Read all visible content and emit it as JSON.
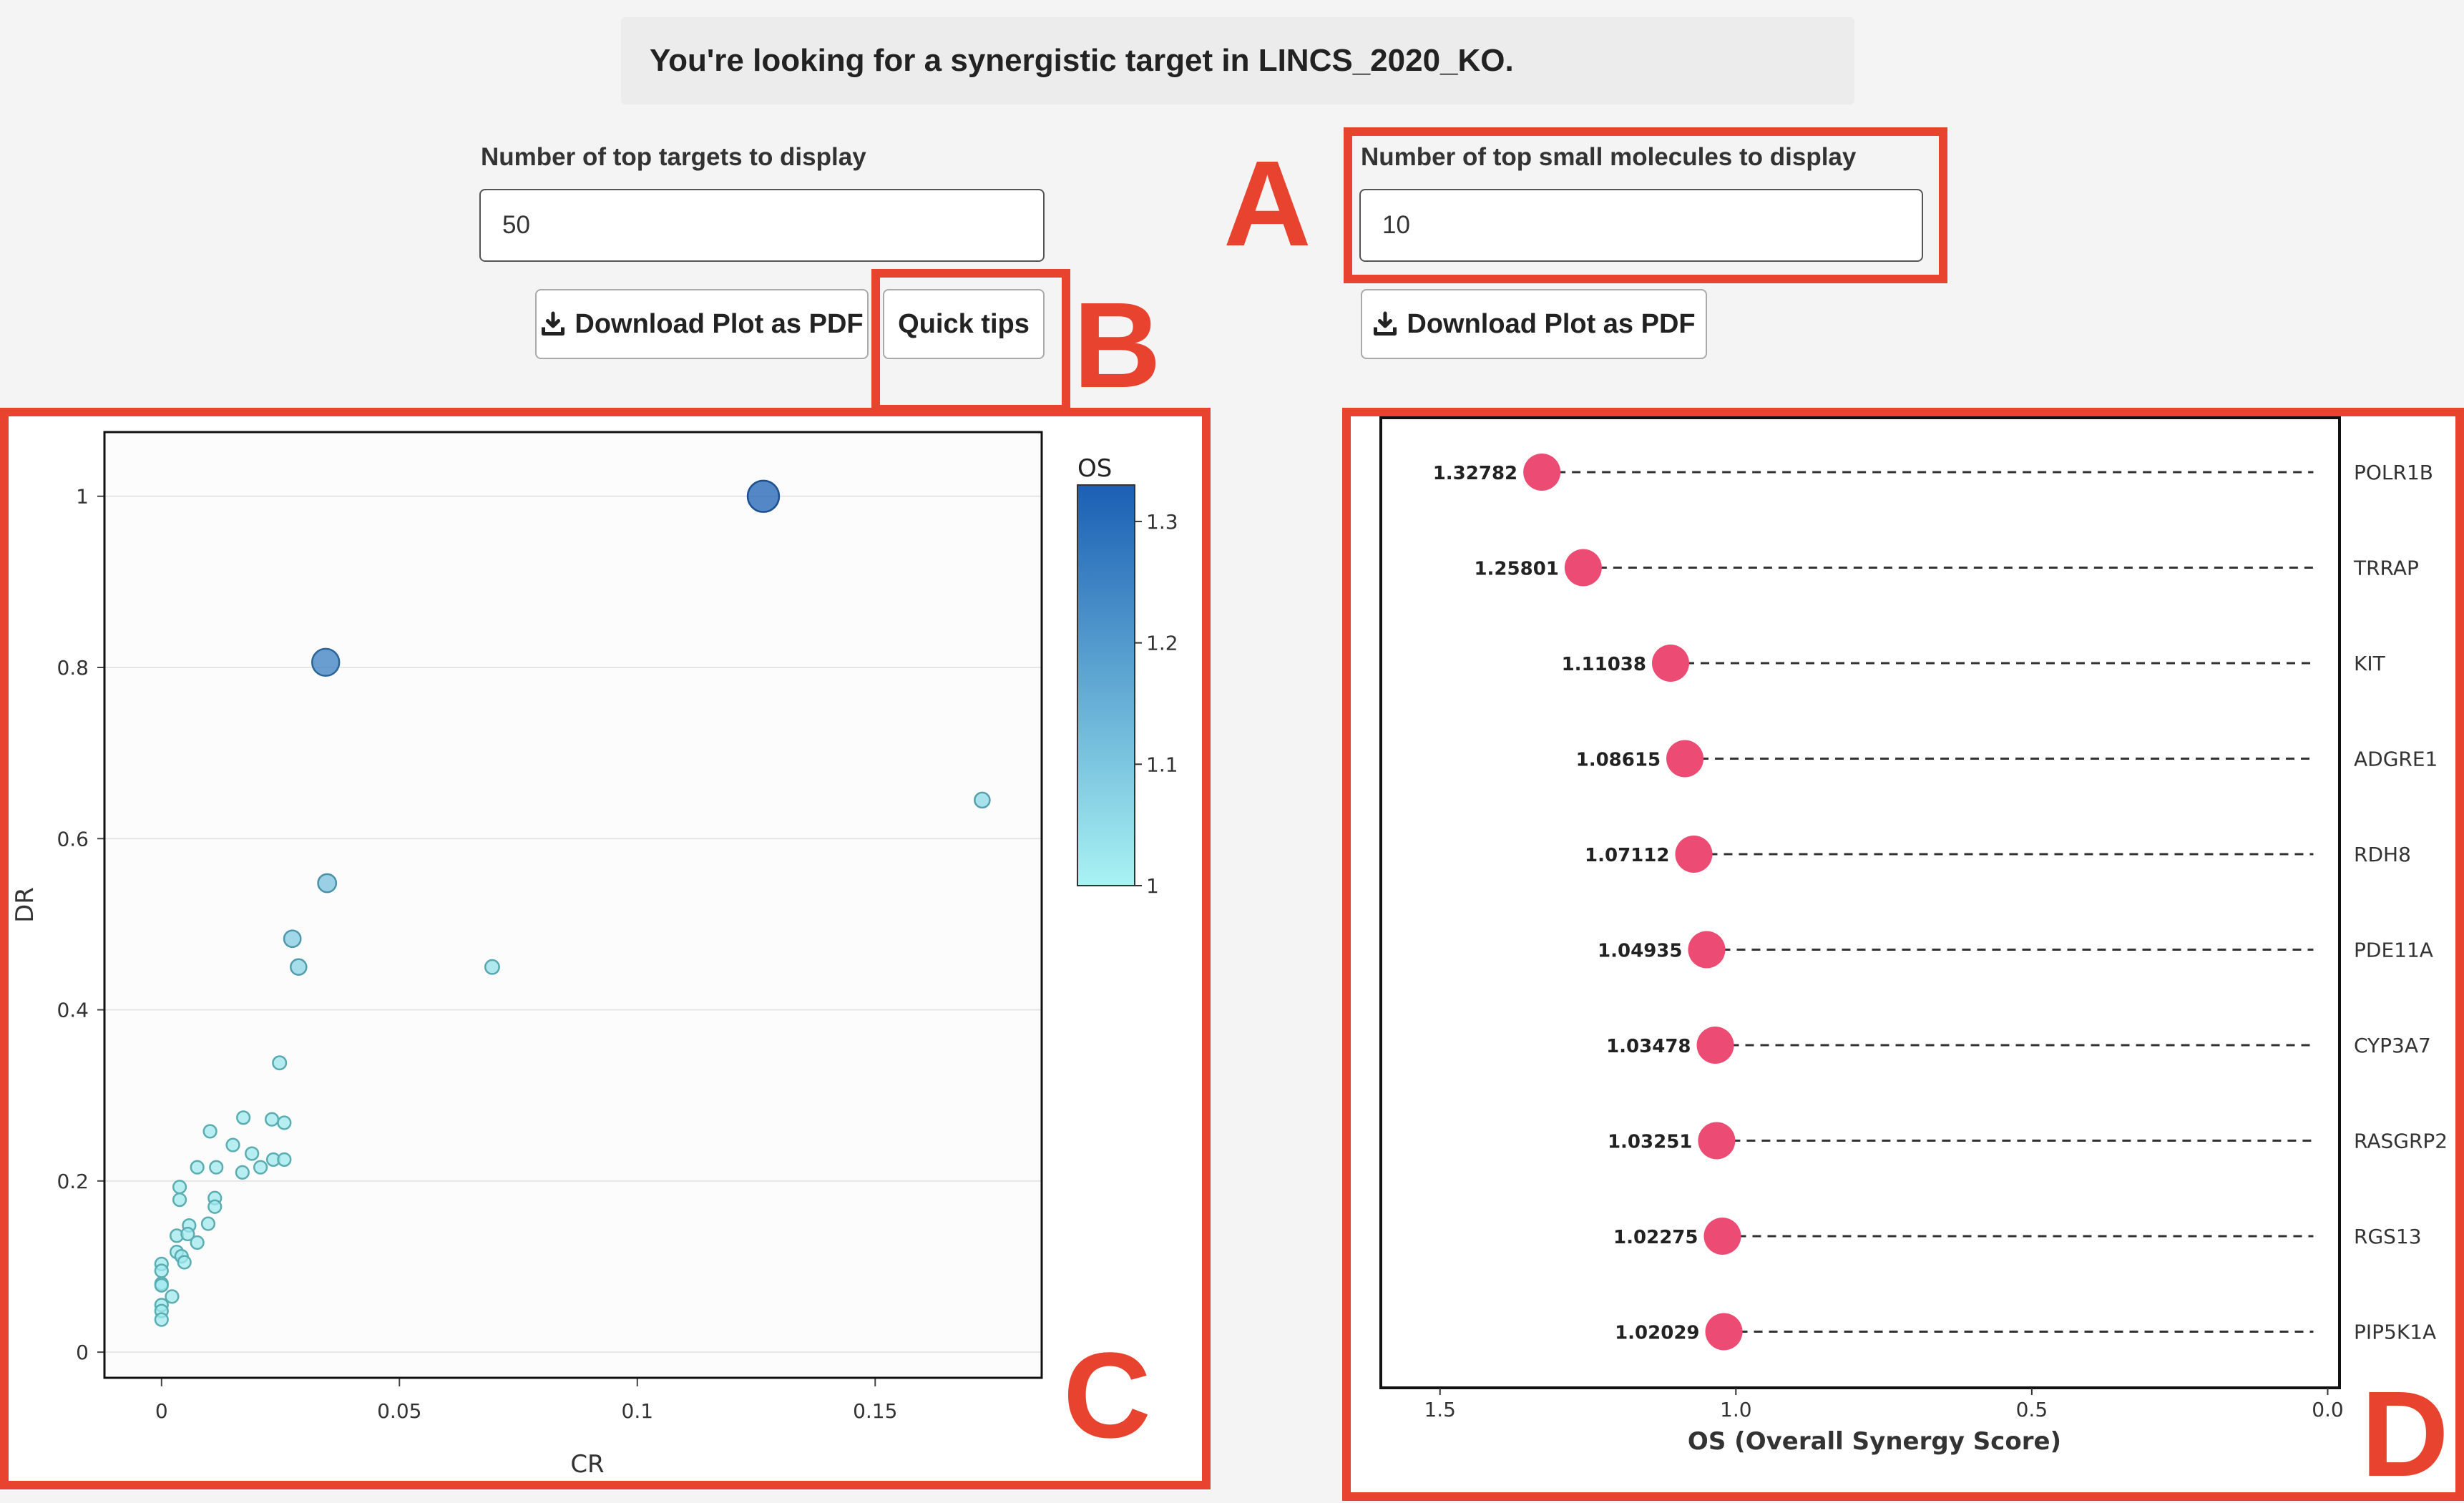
{
  "header": {
    "message": "You're looking for a synergistic target in LINCS_2020_KO."
  },
  "left_controls": {
    "targets_label": "Number of top targets to display",
    "targets_value": "50",
    "download_label": "Download Plot as PDF",
    "quick_tips_label": "Quick tips"
  },
  "right_controls": {
    "molecules_label": "Number of top small molecules to display",
    "molecules_value": "10",
    "download_label": "Download Plot as PDF"
  },
  "annotations": {
    "A": "A",
    "B": "B",
    "C": "C",
    "D": "D",
    "color": "#e8432f"
  },
  "chart_data": [
    {
      "type": "scatter",
      "xlabel": "CR",
      "ylabel": "DR",
      "xlim": [
        -0.012,
        0.185
      ],
      "ylim": [
        -0.03,
        1.075
      ],
      "xticks": [
        "0",
        "0.05",
        "0.1",
        "0.15"
      ],
      "xtick_values": [
        0,
        0.05,
        0.1,
        0.15
      ],
      "yticks": [
        "0",
        "0.2",
        "0.4",
        "0.6",
        "0.8",
        "1"
      ],
      "ytick_values": [
        0,
        0.2,
        0.4,
        0.6,
        0.8,
        1
      ],
      "colorbar": {
        "title": "OS",
        "min": 1,
        "max": 1.33,
        "ticks": [
          "1",
          "1.1",
          "1.2",
          "1.3"
        ],
        "tick_values": [
          1,
          1.1,
          1.2,
          1.3
        ],
        "color_low": "#a8f3f3",
        "color_high": "#1a5fb4"
      },
      "grid": true,
      "points": [
        {
          "x": 0.1265,
          "y": 1.0,
          "os": 1.328
        },
        {
          "x": 0.0345,
          "y": 0.806,
          "os": 1.258
        },
        {
          "x": 0.1725,
          "y": 0.645,
          "os": 1.06
        },
        {
          "x": 0.0348,
          "y": 0.548,
          "os": 1.11
        },
        {
          "x": 0.0275,
          "y": 0.483,
          "os": 1.086
        },
        {
          "x": 0.0288,
          "y": 0.45,
          "os": 1.071
        },
        {
          "x": 0.0695,
          "y": 0.45,
          "os": 1.04
        },
        {
          "x": 0.0248,
          "y": 0.338,
          "os": 1.03
        },
        {
          "x": 0.0172,
          "y": 0.274,
          "os": 1.02
        },
        {
          "x": 0.0232,
          "y": 0.272,
          "os": 1.02
        },
        {
          "x": 0.0258,
          "y": 0.268,
          "os": 1.02
        },
        {
          "x": 0.0102,
          "y": 0.258,
          "os": 1.02
        },
        {
          "x": 0.015,
          "y": 0.242,
          "os": 1.02
        },
        {
          "x": 0.019,
          "y": 0.232,
          "os": 1.02
        },
        {
          "x": 0.0235,
          "y": 0.225,
          "os": 1.02
        },
        {
          "x": 0.0258,
          "y": 0.225,
          "os": 1.02
        },
        {
          "x": 0.0075,
          "y": 0.216,
          "os": 1.02
        },
        {
          "x": 0.0115,
          "y": 0.216,
          "os": 1.02
        },
        {
          "x": 0.0208,
          "y": 0.216,
          "os": 1.02
        },
        {
          "x": 0.017,
          "y": 0.21,
          "os": 1.02
        },
        {
          "x": 0.0038,
          "y": 0.193,
          "os": 1.02
        },
        {
          "x": 0.0112,
          "y": 0.18,
          "os": 1.02
        },
        {
          "x": 0.0038,
          "y": 0.178,
          "os": 1.02
        },
        {
          "x": 0.0112,
          "y": 0.17,
          "os": 1.02
        },
        {
          "x": 0.0058,
          "y": 0.148,
          "os": 1.02
        },
        {
          "x": 0.0098,
          "y": 0.15,
          "os": 1.02
        },
        {
          "x": 0.0032,
          "y": 0.136,
          "os": 1.02
        },
        {
          "x": 0.0055,
          "y": 0.138,
          "os": 1.02
        },
        {
          "x": 0.0075,
          "y": 0.128,
          "os": 1.02
        },
        {
          "x": 0.0032,
          "y": 0.117,
          "os": 1.02
        },
        {
          "x": 0.0042,
          "y": 0.112,
          "os": 1.02
        },
        {
          "x": 0.0048,
          "y": 0.105,
          "os": 1.02
        },
        {
          "x": 0.0,
          "y": 0.103,
          "os": 1.02
        },
        {
          "x": 0.0,
          "y": 0.095,
          "os": 1.02
        },
        {
          "x": 0.0,
          "y": 0.08,
          "os": 1.02
        },
        {
          "x": 0.0,
          "y": 0.078,
          "os": 1.02
        },
        {
          "x": 0.0022,
          "y": 0.065,
          "os": 1.02
        },
        {
          "x": 0.0,
          "y": 0.055,
          "os": 1.02
        },
        {
          "x": 0.0,
          "y": 0.048,
          "os": 1.02
        },
        {
          "x": 0.0,
          "y": 0.038,
          "os": 1.02
        }
      ]
    },
    {
      "type": "lollipop",
      "xlabel": "OS (Overall Synergy Score)",
      "xlim": [
        1.6,
        -0.02
      ],
      "xticks": [
        "1.5",
        "1.0",
        "0.5",
        "0.0"
      ],
      "xtick_values": [
        1.5,
        1.0,
        0.5,
        0.0
      ],
      "color": "#ec4c74",
      "categories": [
        "POLR1B",
        "TRRAP",
        "KIT",
        "ADGRE1",
        "RDH8",
        "PDE11A",
        "CYP3A7",
        "RASGRP2",
        "RGS13",
        "PIP5K1A"
      ],
      "labels": [
        "1.32782",
        "1.25801",
        "1.11038",
        "1.08615",
        "1.07112",
        "1.04935",
        "1.03478",
        "1.03251",
        "1.02275",
        "1.02029"
      ],
      "values": [
        1.32782,
        1.25801,
        1.11038,
        1.08615,
        1.07112,
        1.04935,
        1.03478,
        1.03251,
        1.02275,
        1.02029
      ]
    }
  ]
}
